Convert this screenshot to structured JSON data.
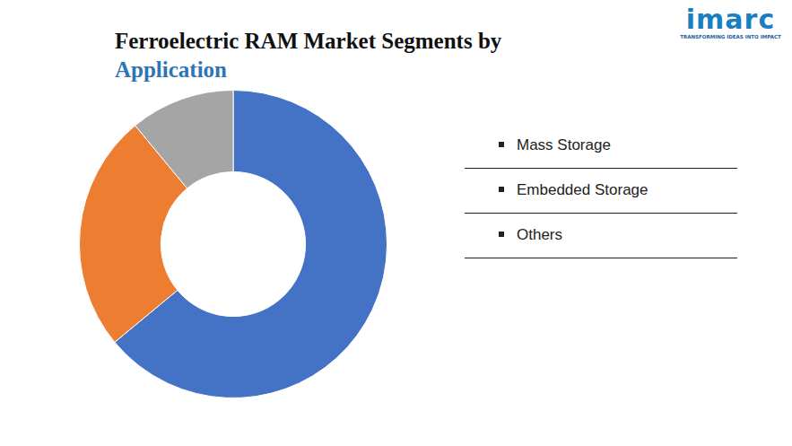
{
  "chart_data": {
    "type": "doughnut",
    "title": [
      "Ferroelectric RAM Market Segments by",
      "Application"
    ],
    "categories": [
      "Mass Storage",
      "Embedded Storage",
      "Others"
    ],
    "values": [
      64,
      25,
      11
    ],
    "colors": [
      "#4472c4",
      "#ed7d31",
      "#a5a5a5"
    ],
    "legend": "right",
    "data_labels": false
  },
  "logo": {
    "name": "imarc",
    "tagline": "TRANSFORMING IDEAS INTO IMPACT"
  }
}
